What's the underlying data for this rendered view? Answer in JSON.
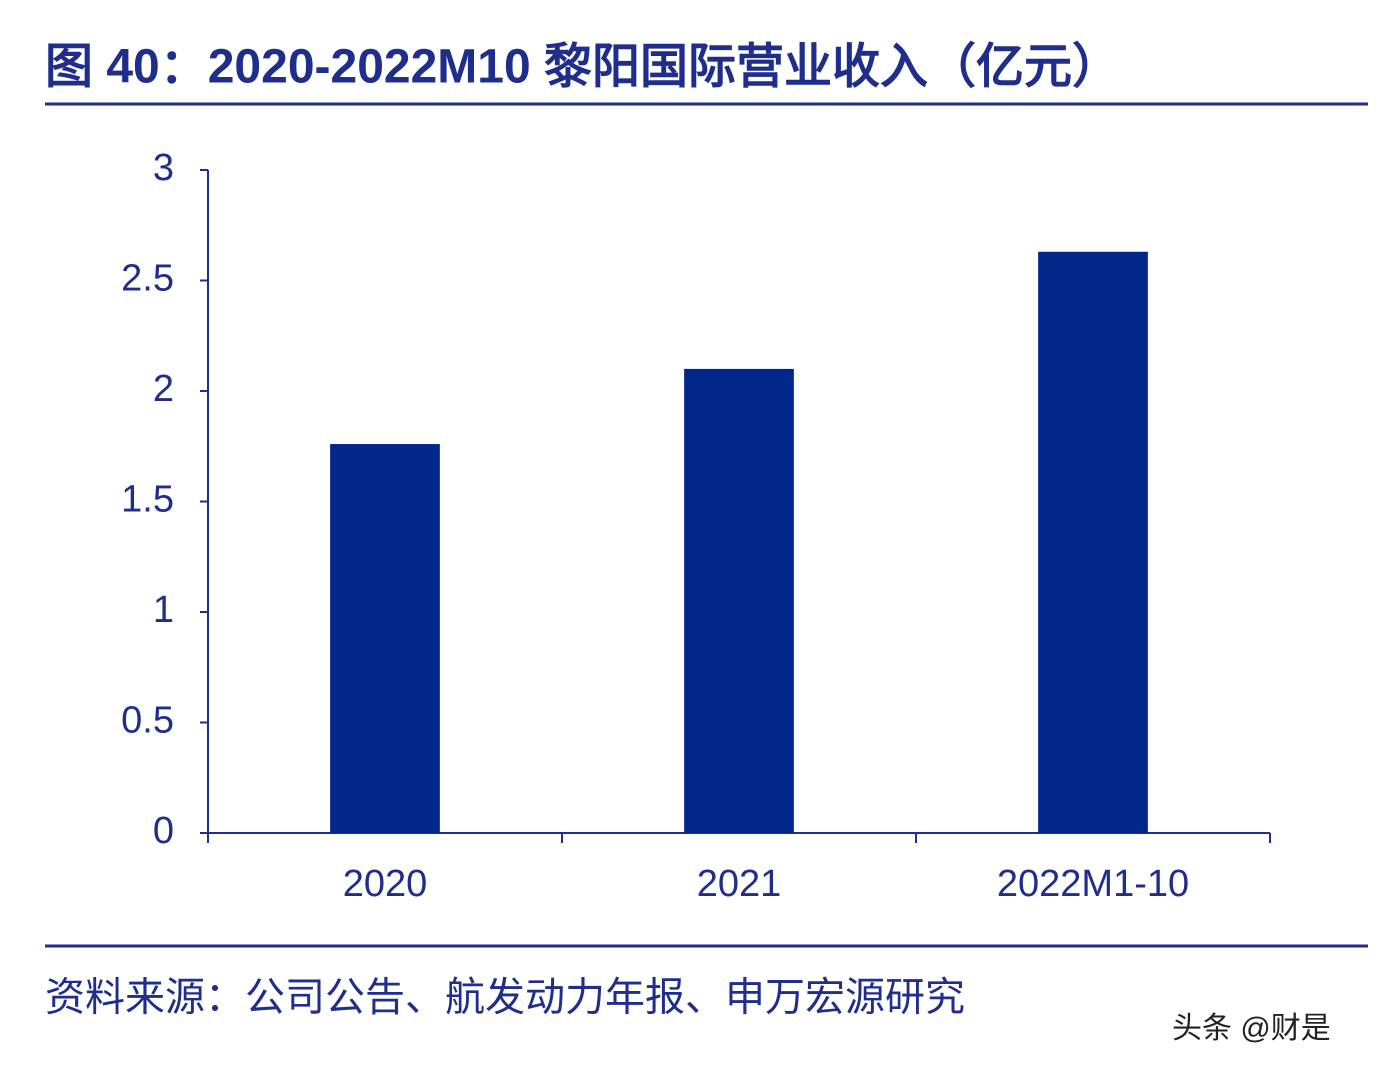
{
  "chart_data": {
    "type": "bar",
    "title": "图 40：2020-2022M10 黎阳国际营业收入（亿元）",
    "categories": [
      "2020",
      "2021",
      "2022M1-10"
    ],
    "values": [
      1.76,
      2.1,
      2.63
    ],
    "color": "#00288c",
    "ylim": [
      0,
      3
    ],
    "yticks": [
      0,
      0.5,
      1,
      1.5,
      2,
      2.5,
      3
    ],
    "grid": false,
    "source": "资料来源：公司公告、航发动力年报、申万宏源研究",
    "watermark": "头条 @财是"
  }
}
